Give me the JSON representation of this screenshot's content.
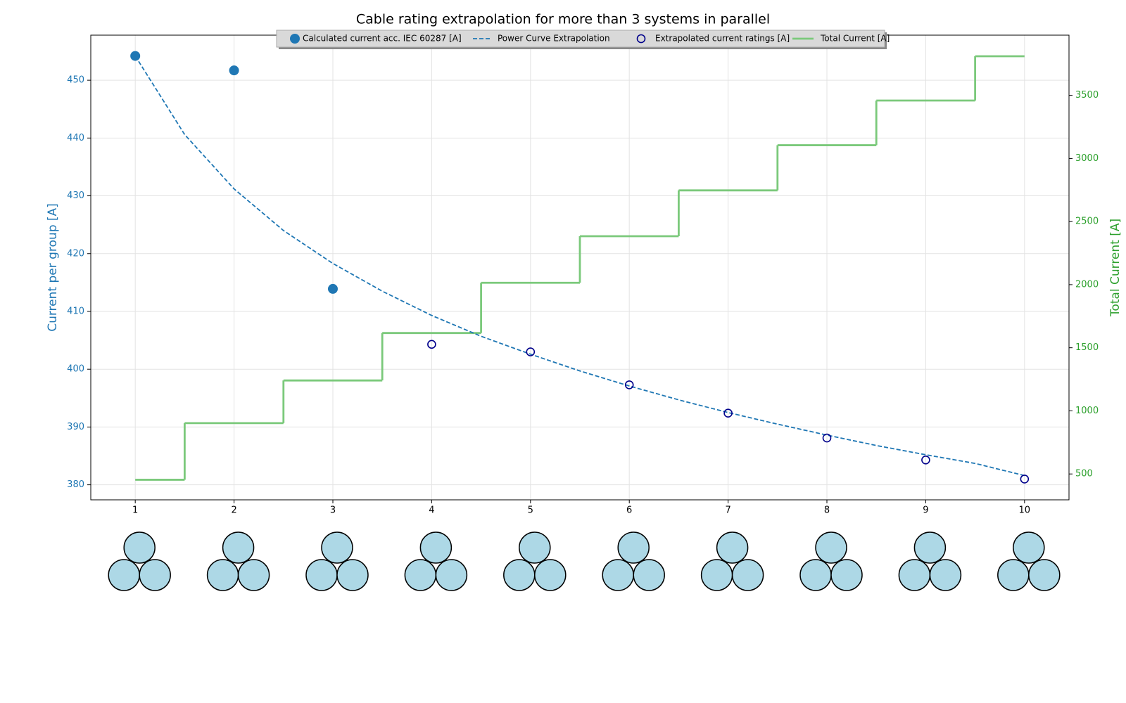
{
  "chart_data": {
    "type": "line",
    "title": "Cable rating extrapolation for more than 3 systems in parallel",
    "ylabel": "Current per group [A]",
    "y2label": "Total Current [A]",
    "xlim": [
      0.55,
      10.45
    ],
    "xticks": [
      1,
      2,
      3,
      4,
      5,
      6,
      7,
      8,
      9,
      10
    ],
    "ylim": [
      377.4,
      457.8
    ],
    "yticks": [
      380,
      390,
      400,
      410,
      420,
      430,
      440,
      450
    ],
    "y2lim": [
      295,
      3977
    ],
    "y2ticks": [
      500,
      1000,
      1500,
      2000,
      2500,
      3000,
      3500
    ],
    "grid": true,
    "legend": "upper center",
    "ylabel_color": "#1f77b4",
    "y2label_color": "#2ca02c",
    "series": [
      {
        "name": "Calculated current acc. IEC 60287 [A]",
        "style": "marker",
        "color": "#1f77b4",
        "x": [
          1,
          2,
          3
        ],
        "values": [
          454.2,
          451.7,
          413.9
        ]
      },
      {
        "name": "Power Curve Extrapolation",
        "style": "dashed",
        "color": "#1f77b4",
        "x": [
          1,
          1.5,
          2,
          2.5,
          3,
          3.5,
          4,
          4.5,
          5,
          5.5,
          6,
          6.5,
          7,
          7.5,
          8,
          8.5,
          9,
          9.5,
          10
        ],
        "values": [
          454.2,
          440.6,
          431.2,
          424.0,
          418.3,
          413.5,
          409.3,
          405.7,
          402.6,
          399.7,
          397.1,
          394.7,
          392.5,
          390.5,
          388.6,
          386.8,
          385.2,
          383.7,
          381.6
        ]
      },
      {
        "name": "Extrapolated current ratings [A]",
        "style": "open-marker",
        "color": "#00008b",
        "x": [
          4,
          5,
          6,
          7,
          8,
          9,
          10
        ],
        "values": [
          404.3,
          403.0,
          397.3,
          392.4,
          388.1,
          384.3,
          381.0
        ]
      },
      {
        "name": "Total Current [A]",
        "style": "step",
        "color": "#7bc97b",
        "axis": "y2",
        "x": [
          1,
          2,
          3,
          4,
          5,
          6,
          7,
          8,
          9,
          10
        ],
        "values": [
          454,
          903,
          1241,
          1617,
          2015,
          2384,
          2747,
          3105,
          3459,
          3810
        ]
      }
    ]
  }
}
